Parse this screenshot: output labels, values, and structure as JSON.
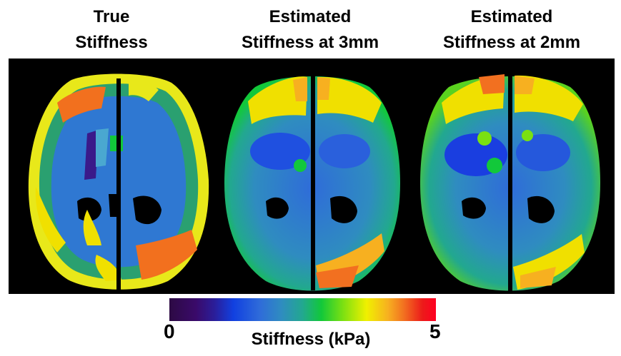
{
  "titles": {
    "panel1": {
      "line1": "True",
      "line2": "Stiffness"
    },
    "panel2": {
      "line1": "Estimated",
      "line2": "Stiffness at 3mm"
    },
    "panel3": {
      "line1": "Estimated",
      "line2": "Stiffness at 2mm"
    }
  },
  "colorbar": {
    "min_label": "0",
    "max_label": "5",
    "label": "Stiffness (kPa)",
    "range_kpa": [
      0,
      5
    ],
    "colormap": "spectral-like (purple-blue-green-yellow-orange-red)"
  },
  "colors": {
    "background": "#000000",
    "low": "#2d0a44",
    "blue": "#2f6cd9",
    "cyan": "#22a88f",
    "green": "#12c83a",
    "yellow": "#f0f000",
    "orange": "#f27020",
    "red": "#ff0022"
  }
}
